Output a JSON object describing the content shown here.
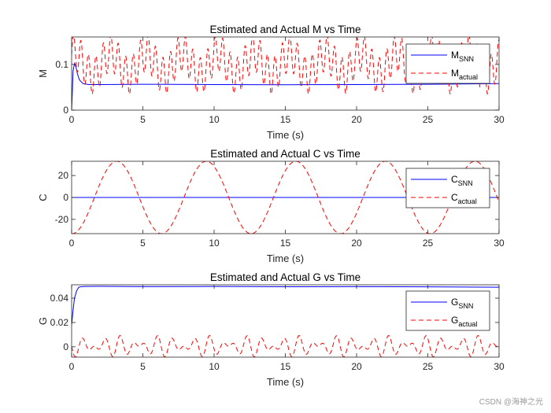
{
  "watermark": "CSDN @海神之光",
  "chart_data": [
    {
      "type": "line",
      "id": "m",
      "title": "Estimated and Actual M vs Time",
      "xlabel": "Time (s)",
      "ylabel": "M",
      "xlim": [
        0,
        30
      ],
      "ylim": [
        0,
        0.16
      ],
      "xticks": [
        0,
        5,
        10,
        15,
        20,
        25,
        30
      ],
      "yticks": [
        0,
        0.1
      ],
      "ytick_labels": [
        "0",
        "0.1"
      ],
      "grid": false,
      "legend": "top-right",
      "series": [
        {
          "name": "M_SNN",
          "label_main": "M",
          "label_sub": "SNN",
          "style": "solid",
          "color": "#0000ff",
          "x": [
            0,
            0.05,
            0.1,
            0.2,
            0.3,
            0.4,
            0.55,
            0.8,
            1.2,
            2,
            5,
            10,
            15,
            20,
            25,
            30
          ],
          "y": [
            0,
            0.04,
            0.085,
            0.102,
            0.095,
            0.08,
            0.066,
            0.058,
            0.056,
            0.056,
            0.0565,
            0.056,
            0.0555,
            0.056,
            0.0565,
            0.058
          ]
        },
        {
          "name": "M_actual",
          "label_main": "M",
          "label_sub": "actual",
          "style": "dashed",
          "color": "#ff0000",
          "formula": "0.1 + 0.04*sin(12t) + 0.025*sin(2.5t + 1)",
          "samples": 1500
        }
      ]
    },
    {
      "type": "line",
      "id": "c",
      "title": "Estimated and Actual C vs Time",
      "xlabel": "Time (s)",
      "ylabel": "C",
      "xlim": [
        0,
        30
      ],
      "ylim": [
        -33,
        33
      ],
      "xticks": [
        0,
        5,
        10,
        15,
        20,
        25,
        30
      ],
      "yticks": [
        -20,
        0,
        20
      ],
      "ytick_labels": [
        "-20",
        "0",
        "20"
      ],
      "grid": false,
      "legend": "top-right",
      "series": [
        {
          "name": "C_SNN",
          "label_main": "C",
          "label_sub": "SNN",
          "style": "solid",
          "color": "#0000ff",
          "x": [
            0,
            30
          ],
          "y": [
            0,
            0
          ]
        },
        {
          "name": "C_actual",
          "label_main": "C",
          "label_sub": "actual",
          "style": "dashed",
          "color": "#ff0000",
          "formula": "33*sin(t - 1.6)",
          "samples": 1200
        }
      ]
    },
    {
      "type": "line",
      "id": "g",
      "title": "Estimated and Actual G vs Time",
      "xlabel": "Time (s)",
      "ylabel": "G",
      "xlim": [
        0,
        30
      ],
      "ylim": [
        -0.0085,
        0.051
      ],
      "xticks": [
        0,
        5,
        10,
        15,
        20,
        25,
        30
      ],
      "yticks": [
        0,
        0.02,
        0.04
      ],
      "ytick_labels": [
        "0",
        "0.02",
        "0.04"
      ],
      "grid": false,
      "legend": "top-right",
      "series": [
        {
          "name": "G_SNN",
          "label_main": "G",
          "label_sub": "SNN",
          "style": "solid",
          "color": "#0000ff",
          "x": [
            0,
            0.1,
            0.2,
            0.35,
            0.5,
            0.7,
            1,
            2,
            5,
            10,
            15,
            20,
            25,
            30
          ],
          "y": [
            0.018,
            0.03,
            0.04,
            0.046,
            0.049,
            0.0495,
            0.0496,
            0.0497,
            0.0495,
            0.0496,
            0.0494,
            0.0495,
            0.0493,
            0.049
          ]
        },
        {
          "name": "G_actual",
          "label_main": "G",
          "label_sub": "actual",
          "style": "dashed",
          "color": "#ff0000",
          "formula": "0.0005 + 0.009*sin(t - 1.6)*sin(6t)",
          "samples": 1500
        }
      ]
    }
  ]
}
